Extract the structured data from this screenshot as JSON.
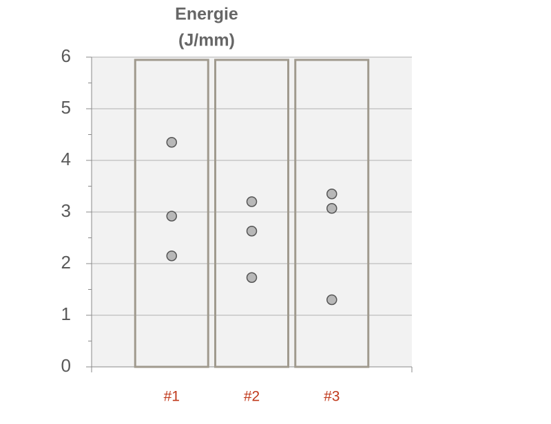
{
  "chart_data": {
    "type": "strip",
    "title": [
      "Energie",
      "(J/mm)"
    ],
    "categories": [
      "#1",
      "#2",
      "#3"
    ],
    "values": [
      [
        4.35,
        2.92,
        2.15
      ],
      [
        3.2,
        2.63,
        1.73
      ],
      [
        3.35,
        3.07,
        1.3
      ]
    ],
    "color": "#b8b8b8",
    "ylim": [
      0,
      6
    ],
    "yticks": [
      0,
      1,
      2,
      3,
      4,
      5,
      6
    ],
    "grid": true
  }
}
